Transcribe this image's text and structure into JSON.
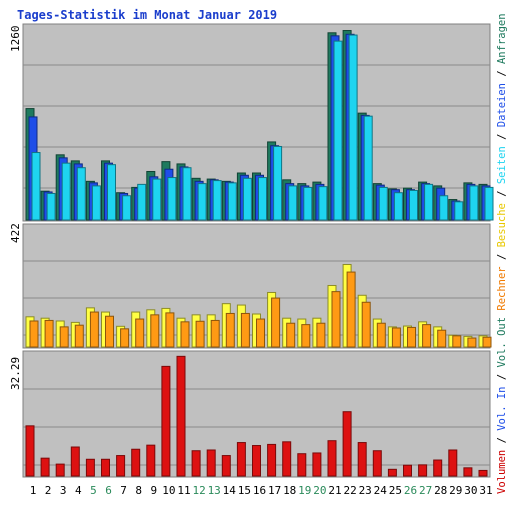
{
  "chart_data": [
    {
      "type": "bar",
      "title": "Tages-Statistik im Monat Januar 2019",
      "panel": "top",
      "max_label": "1260",
      "ymax": 1260,
      "categories": [
        "1",
        "2",
        "3",
        "4",
        "5",
        "6",
        "7",
        "8",
        "9",
        "10",
        "11",
        "12",
        "13",
        "14",
        "15",
        "16",
        "17",
        "18",
        "19",
        "20",
        "21",
        "22",
        "23",
        "24",
        "25",
        "26",
        "27",
        "28",
        "29",
        "30",
        "31"
      ],
      "weekend_days": [
        "5",
        "6",
        "12",
        "13",
        "19",
        "20",
        "26",
        "27"
      ],
      "series": [
        {
          "name": "Anfragen",
          "color": "#1e7a5e",
          "values": [
            735,
            190,
            430,
            390,
            255,
            390,
            180,
            215,
            320,
            385,
            370,
            275,
            270,
            255,
            310,
            310,
            515,
            265,
            240,
            250,
            1235,
            1250,
            705,
            240,
            205,
            210,
            250,
            225,
            135,
            245,
            235
          ]
        },
        {
          "name": "Dateien",
          "color": "#1e4ee8",
          "values": [
            680,
            185,
            410,
            370,
            245,
            375,
            175,
            210,
            285,
            335,
            350,
            255,
            265,
            250,
            295,
            295,
            490,
            240,
            225,
            235,
            1215,
            1225,
            690,
            230,
            200,
            200,
            240,
            210,
            125,
            235,
            225
          ]
        },
        {
          "name": "Seiten",
          "color": "#1ed4f0",
          "values": [
            445,
            175,
            375,
            345,
            225,
            365,
            160,
            235,
            270,
            280,
            345,
            240,
            260,
            245,
            275,
            280,
            485,
            225,
            215,
            220,
            1180,
            1220,
            685,
            215,
            180,
            195,
            235,
            160,
            120,
            225,
            215
          ]
        }
      ],
      "axis_legend": [
        "Anfragen",
        "Dateien",
        "Seiten"
      ],
      "legend_colors": [
        "#1e7a5e",
        "#1e4ee8",
        "#1ed4f0"
      ]
    },
    {
      "type": "bar",
      "panel": "middle",
      "max_label": "422",
      "ymax": 422,
      "categories": [
        "1",
        "2",
        "3",
        "4",
        "5",
        "6",
        "7",
        "8",
        "9",
        "10",
        "11",
        "12",
        "13",
        "14",
        "15",
        "16",
        "17",
        "18",
        "19",
        "20",
        "21",
        "22",
        "23",
        "24",
        "25",
        "26",
        "27",
        "28",
        "29",
        "30",
        "31"
      ],
      "series": [
        {
          "name": "Besuche",
          "color": "#ffff44",
          "values": [
            108,
            103,
            93,
            88,
            140,
            125,
            74,
            125,
            133,
            138,
            103,
            115,
            115,
            155,
            150,
            118,
            195,
            103,
            100,
            103,
            220,
            295,
            185,
            100,
            72,
            75,
            90,
            72,
            42,
            38,
            40
          ]
        },
        {
          "name": "Rechner",
          "color": "#ff9a14",
          "values": [
            93,
            95,
            72,
            78,
            125,
            110,
            65,
            100,
            115,
            122,
            90,
            92,
            95,
            120,
            120,
            100,
            175,
            85,
            80,
            85,
            198,
            268,
            160,
            85,
            68,
            70,
            80,
            60,
            40,
            32,
            35
          ]
        }
      ],
      "axis_legend": [
        "Besuche",
        "Rechner"
      ],
      "legend_colors": [
        "#e8c800",
        "#f07a00"
      ]
    },
    {
      "type": "bar",
      "panel": "bottom",
      "max_label": "32.29",
      "ymax": 32.29,
      "categories": [
        "1",
        "2",
        "3",
        "4",
        "5",
        "6",
        "7",
        "8",
        "9",
        "10",
        "11",
        "12",
        "13",
        "14",
        "15",
        "16",
        "17",
        "18",
        "19",
        "20",
        "21",
        "22",
        "23",
        "24",
        "25",
        "26",
        "27",
        "28",
        "29",
        "30",
        "31"
      ],
      "series": [
        {
          "name": "Volumen",
          "color": "#dd1111",
          "values": [
            13.5,
            4.8,
            3.2,
            7.8,
            4.5,
            4.5,
            5.5,
            7.2,
            8.3,
            29.5,
            32.2,
            6.8,
            7.0,
            5.5,
            9.0,
            8.2,
            8.5,
            9.2,
            6.0,
            6.2,
            9.5,
            17.3,
            9.0,
            6.8,
            1.8,
            2.9,
            3.0,
            4.3,
            7.0,
            2.2,
            1.5
          ]
        }
      ],
      "axis_legend": [
        "Volumen",
        "Vol. In",
        "Vol. Out"
      ],
      "legend_colors": [
        "#cc0000",
        "#1e4ee8",
        "#1e7a5e"
      ]
    }
  ]
}
